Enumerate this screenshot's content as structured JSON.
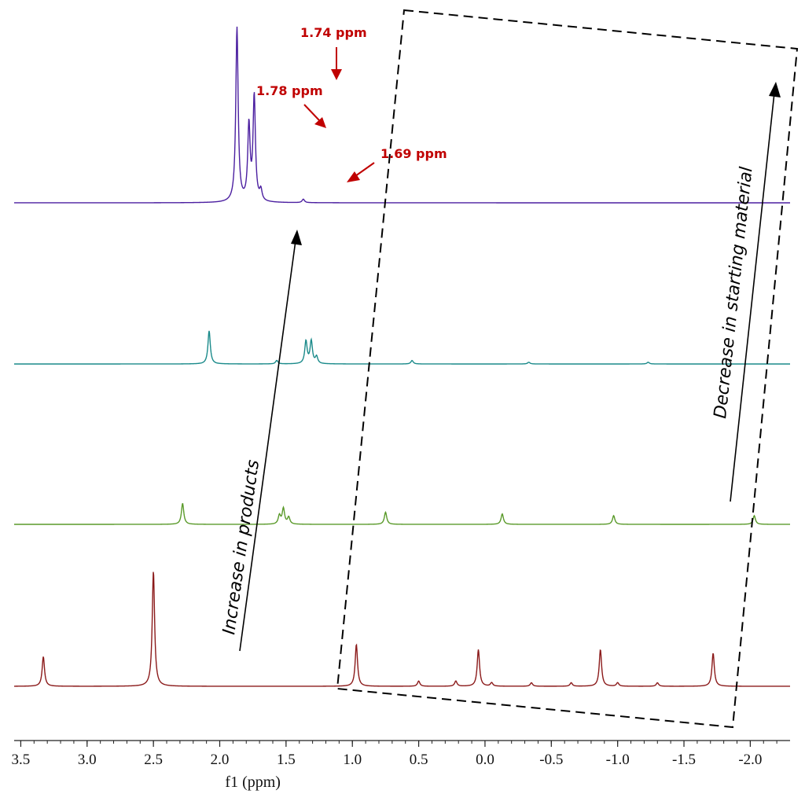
{
  "chart_data": {
    "type": "line",
    "xlabel": "f1 (ppm)",
    "xlim": [
      3.55,
      -2.3
    ],
    "x_inverted": true,
    "xticks": [
      {
        "value": 3.5,
        "label": "3.5"
      },
      {
        "value": 3.0,
        "label": "3.0"
      },
      {
        "value": 2.5,
        "label": "2.5"
      },
      {
        "value": 2.0,
        "label": "2.0"
      },
      {
        "value": 1.5,
        "label": "1.5"
      },
      {
        "value": 1.0,
        "label": "1.0"
      },
      {
        "value": 0.5,
        "label": "0.5"
      },
      {
        "value": 0.0,
        "label": "0.0"
      },
      {
        "value": -0.5,
        "label": "-0.5"
      },
      {
        "value": -1.0,
        "label": "-1.0"
      },
      {
        "value": -1.5,
        "label": "-1.5"
      },
      {
        "value": -2.0,
        "label": "-2.0"
      }
    ],
    "series": [
      {
        "color": "#8b1a1a",
        "peaks": [
          {
            "x": 3.33,
            "h": 0.17
          },
          {
            "x": 2.5,
            "h": 0.66
          },
          {
            "x": 0.97,
            "h": 0.24
          },
          {
            "x": 0.5,
            "h": 0.03
          },
          {
            "x": 0.22,
            "h": 0.03
          },
          {
            "x": 0.05,
            "h": 0.21
          },
          {
            "x": -0.05,
            "h": 0.02
          },
          {
            "x": -0.35,
            "h": 0.02
          },
          {
            "x": -0.65,
            "h": 0.02
          },
          {
            "x": -0.87,
            "h": 0.21
          },
          {
            "x": -1.0,
            "h": 0.02
          },
          {
            "x": -1.3,
            "h": 0.02
          },
          {
            "x": -1.72,
            "h": 0.19
          }
        ]
      },
      {
        "color": "#5a9a2a",
        "peaks": [
          {
            "x": 2.28,
            "h": 0.12
          },
          {
            "x": 1.55,
            "h": 0.05
          },
          {
            "x": 1.52,
            "h": 0.09
          },
          {
            "x": 1.48,
            "h": 0.04
          },
          {
            "x": 0.75,
            "h": 0.07
          },
          {
            "x": -0.13,
            "h": 0.06
          },
          {
            "x": -0.97,
            "h": 0.05
          },
          {
            "x": -2.03,
            "h": 0.05
          }
        ]
      },
      {
        "color": "#1a8a8a",
        "peaks": [
          {
            "x": 2.08,
            "h": 0.19
          },
          {
            "x": 1.57,
            "h": 0.02
          },
          {
            "x": 1.35,
            "h": 0.13
          },
          {
            "x": 1.31,
            "h": 0.13
          },
          {
            "x": 1.27,
            "h": 0.04
          },
          {
            "x": 0.55,
            "h": 0.02
          },
          {
            "x": -0.33,
            "h": 0.01
          },
          {
            "x": -1.23,
            "h": 0.01
          }
        ]
      },
      {
        "color": "#4b1fa0",
        "peaks": [
          {
            "x": 1.87,
            "h": 1.0
          },
          {
            "x": 1.37,
            "h": 0.02
          },
          {
            "x": 1.78,
            "h": 0.43
          },
          {
            "x": 1.74,
            "h": 0.6
          },
          {
            "x": 1.69,
            "h": 0.06
          }
        ]
      }
    ],
    "annotations": {
      "peak_1": "1.74 ppm",
      "peak_2": "1.78 ppm",
      "peak_3": "1.69 ppm",
      "arrow_left": "Increase in products",
      "arrow_right": "Decrease in starting material"
    }
  }
}
